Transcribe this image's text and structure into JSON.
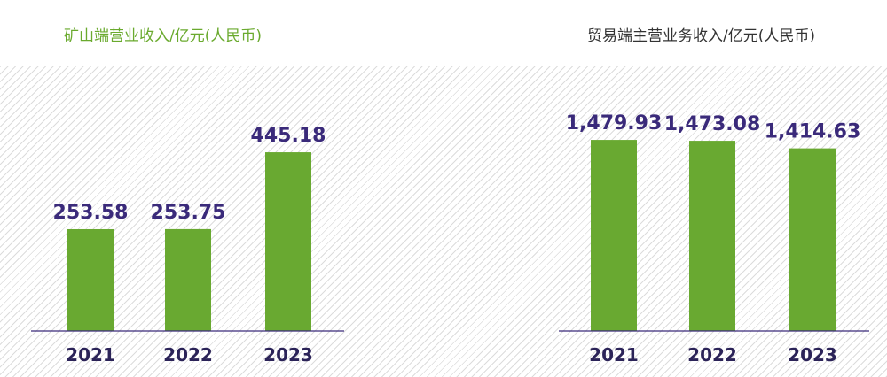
{
  "chart_data": [
    {
      "type": "bar",
      "title": "矿山端营业收入/亿元(人民币)",
      "categories": [
        "2021",
        "2022",
        "2023"
      ],
      "values": [
        253.58,
        253.75,
        445.18
      ],
      "value_labels": [
        "253.58",
        "253.75",
        "445.18"
      ],
      "bar_color": "#69a931",
      "grid": false,
      "legend": "none"
    },
    {
      "type": "bar",
      "title": "贸易端主营业务收入/亿元(人民币)",
      "categories": [
        "2021",
        "2022",
        "2023"
      ],
      "values": [
        1479.93,
        1473.08,
        1414.63
      ],
      "value_labels": [
        "1,479.93",
        "1,473.08",
        "1,414.63"
      ],
      "bar_color": "#69a931",
      "grid": false,
      "legend": "none"
    }
  ]
}
